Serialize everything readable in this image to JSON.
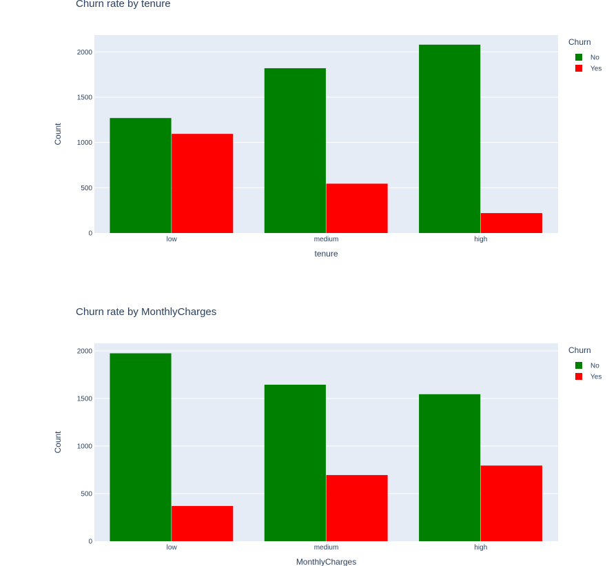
{
  "chart_data": [
    {
      "type": "bar",
      "title": "Churn rate by  tenure",
      "xlabel": "tenure",
      "ylabel": "Count",
      "categories": [
        "low",
        "medium",
        "high"
      ],
      "ylim": [
        0,
        2185
      ],
      "yticks": [
        0,
        500,
        1000,
        1500,
        2000
      ],
      "grid": true,
      "legend": {
        "title": "Churn",
        "placement": "top-right"
      },
      "series": [
        {
          "name": "No",
          "color": "#008000",
          "values": [
            1270,
            1820,
            2080
          ]
        },
        {
          "name": "Yes",
          "color": "#ff0000",
          "values": [
            1095,
            545,
            220
          ]
        }
      ]
    },
    {
      "type": "bar",
      "title": "Churn rate by  MonthlyCharges",
      "xlabel": "MonthlyCharges",
      "ylabel": "Count",
      "categories": [
        "low",
        "medium",
        "high"
      ],
      "ylim": [
        0,
        2080
      ],
      "yticks": [
        0,
        500,
        1000,
        1500,
        2000
      ],
      "grid": true,
      "legend": {
        "title": "Churn",
        "placement": "top-right"
      },
      "series": [
        {
          "name": "No",
          "color": "#008000",
          "values": [
            1975,
            1645,
            1545
          ]
        },
        {
          "name": "Yes",
          "color": "#ff0000",
          "values": [
            370,
            695,
            795
          ]
        }
      ]
    }
  ],
  "style": {
    "plot_bg": "#e5ecf6",
    "grid_color": "#ffffff",
    "text_color": "#2a3f5f"
  }
}
